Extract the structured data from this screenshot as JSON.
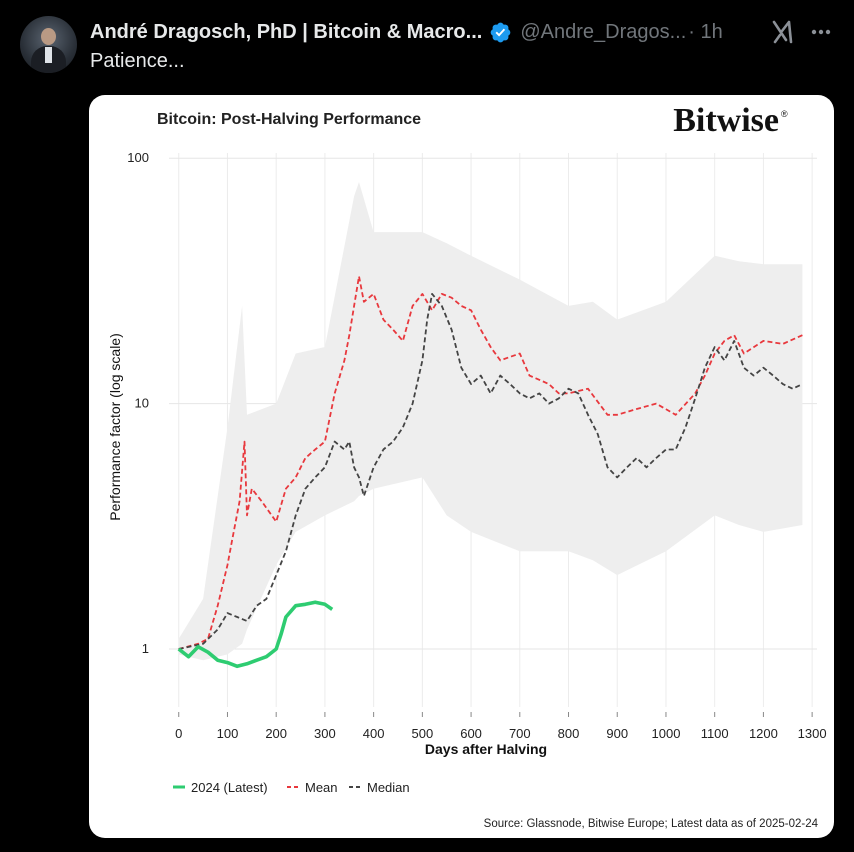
{
  "tweet": {
    "author_name": "André Dragosch, PhD | Bitcoin & Macro...",
    "handle": "@Andre_Dragos...",
    "time": "· 1h",
    "text": "Patience...",
    "icons": {
      "verified": "verified-badge-icon",
      "grok": "grok-icon",
      "more": "more-options-icon"
    }
  },
  "chart_data": {
    "type": "line",
    "title": "Bitcoin: Post-Halving Performance",
    "brand": "Bitwise",
    "xlabel": "Days after Halving",
    "ylabel": "Performance factor (log scale)",
    "y_scale": "log",
    "xlim": [
      -20,
      1310
    ],
    "ylim": [
      0.58,
      105
    ],
    "x_ticks": [
      "0",
      "100",
      "200",
      "300",
      "400",
      "500",
      "600",
      "700",
      "800",
      "900",
      "1000",
      "1100",
      "1200",
      "1300"
    ],
    "y_ticks": [
      "1",
      "10",
      "100"
    ],
    "source": "Source: Glassnode, Bitwise Europe; Latest data as of 2025-02-24",
    "legend_position": "bottom-left",
    "band": {
      "x": [
        0,
        50,
        100,
        130,
        140,
        200,
        240,
        300,
        360,
        370,
        400,
        500,
        550,
        600,
        700,
        800,
        850,
        900,
        1000,
        1100,
        1150,
        1200,
        1280
      ],
      "upper": [
        1.1,
        1.6,
        8,
        25,
        9,
        10,
        16,
        17,
        70,
        80,
        50,
        50,
        45,
        40,
        32,
        25,
        26,
        22,
        26,
        40,
        38,
        37,
        37
      ],
      "lower": [
        0.95,
        0.9,
        0.95,
        1.05,
        1.2,
        2.2,
        3,
        3.5,
        4,
        4.2,
        4.5,
        5,
        3.5,
        3,
        2.5,
        2.5,
        2.3,
        2,
        2.5,
        3.5,
        3.2,
        3,
        3.2
      ]
    },
    "series": [
      {
        "name": "2024 (Latest)",
        "color": "#2ecc71",
        "dash": "solid",
        "x": [
          0,
          20,
          40,
          60,
          80,
          100,
          120,
          140,
          160,
          180,
          200,
          210,
          220,
          240,
          260,
          280,
          300,
          315
        ],
        "y": [
          1.0,
          0.93,
          1.02,
          0.97,
          0.9,
          0.88,
          0.85,
          0.87,
          0.9,
          0.93,
          1.0,
          1.15,
          1.35,
          1.5,
          1.52,
          1.55,
          1.52,
          1.45
        ]
      },
      {
        "name": "Mean",
        "color": "#e8383d",
        "dash": "dashed",
        "x": [
          0,
          40,
          60,
          80,
          100,
          110,
          125,
          135,
          140,
          150,
          170,
          200,
          220,
          240,
          260,
          280,
          300,
          320,
          340,
          350,
          360,
          370,
          380,
          400,
          420,
          440,
          460,
          480,
          500,
          520,
          540,
          560,
          580,
          600,
          620,
          640,
          660,
          680,
          700,
          720,
          740,
          760,
          780,
          800,
          840,
          880,
          900,
          940,
          980,
          1020,
          1060,
          1080,
          1100,
          1120,
          1140,
          1160,
          1200,
          1240,
          1280
        ],
        "y": [
          1.0,
          1.05,
          1.1,
          1.5,
          2.2,
          2.8,
          4.0,
          7.0,
          3.5,
          4.5,
          4.0,
          3.3,
          4.5,
          5.0,
          6.0,
          6.5,
          7.0,
          11.0,
          15.0,
          19.0,
          25.0,
          33.0,
          26.0,
          28.0,
          22.0,
          20.0,
          18.0,
          25.0,
          28.0,
          24.0,
          28.0,
          27.0,
          25.0,
          24.0,
          20.0,
          17.0,
          15.0,
          15.5,
          16.0,
          13.0,
          12.5,
          12.0,
          11.0,
          11.0,
          11.5,
          9.0,
          9.0,
          9.5,
          10.0,
          9.0,
          11.0,
          13.0,
          16.0,
          18.0,
          19.0,
          16.0,
          18.0,
          17.5,
          19.0
        ]
      },
      {
        "name": "Median",
        "color": "#444444",
        "dash": "dashed",
        "x": [
          0,
          50,
          80,
          100,
          120,
          140,
          160,
          180,
          200,
          220,
          240,
          260,
          280,
          300,
          320,
          340,
          350,
          360,
          370,
          380,
          400,
          420,
          440,
          460,
          480,
          500,
          510,
          520,
          540,
          560,
          580,
          600,
          620,
          640,
          660,
          680,
          700,
          720,
          740,
          760,
          780,
          800,
          820,
          840,
          860,
          880,
          900,
          920,
          940,
          960,
          980,
          1000,
          1020,
          1040,
          1060,
          1080,
          1100,
          1120,
          1140,
          1160,
          1180,
          1200,
          1220,
          1240,
          1260,
          1280
        ],
        "y": [
          1.0,
          1.05,
          1.2,
          1.4,
          1.35,
          1.3,
          1.5,
          1.6,
          2.0,
          2.5,
          3.5,
          4.5,
          5.0,
          5.5,
          7.0,
          6.5,
          7.0,
          5.5,
          5.0,
          4.2,
          5.5,
          6.5,
          7.0,
          8.0,
          10.0,
          15.0,
          22.0,
          28.0,
          25.0,
          20.0,
          14.0,
          12.0,
          13.0,
          11.0,
          13.0,
          12.0,
          11.0,
          10.5,
          11.0,
          10.0,
          10.5,
          11.5,
          11.0,
          9.0,
          7.5,
          5.5,
          5.0,
          5.5,
          6.0,
          5.5,
          6.0,
          6.5,
          6.5,
          8.0,
          10.5,
          14.0,
          17.0,
          15.0,
          18.0,
          14.0,
          13.0,
          14.0,
          13.0,
          12.0,
          11.5,
          12.0
        ]
      }
    ]
  }
}
